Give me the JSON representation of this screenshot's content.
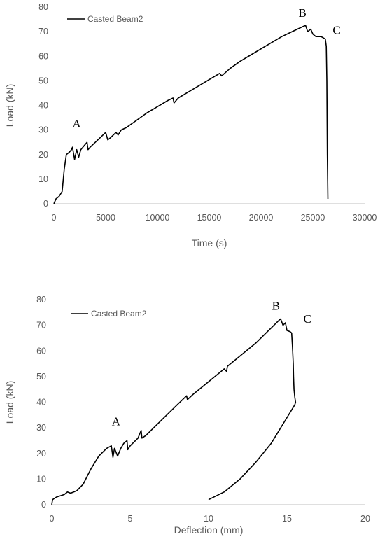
{
  "chart_data": [
    {
      "type": "line",
      "title": "",
      "xlabel": "Time (s)",
      "ylabel": "Load (kN)",
      "xlim": [
        0,
        30000
      ],
      "ylim": [
        0,
        80
      ],
      "xticks": [
        "0",
        "5000",
        "10000",
        "15000",
        "20000",
        "25000",
        "30000"
      ],
      "yticks": [
        "0",
        "10",
        "20",
        "30",
        "40",
        "50",
        "60",
        "70",
        "80"
      ],
      "grid": false,
      "legend_position": "top-left",
      "series": [
        {
          "name": "Casted Beam2",
          "color": "#000000",
          "x": [
            0,
            200,
            500,
            800,
            1000,
            1200,
            1500,
            1700,
            1800,
            2000,
            2200,
            2400,
            2600,
            2800,
            3000,
            3200,
            3300,
            3500,
            4000,
            4500,
            5000,
            5200,
            5500,
            6000,
            6200,
            6500,
            7000,
            8000,
            9000,
            10000,
            11000,
            11500,
            11600,
            12000,
            13000,
            14000,
            15000,
            16000,
            16200,
            17000,
            18000,
            19000,
            20000,
            21000,
            21600,
            22000,
            23000,
            24000,
            24300,
            24500,
            24800,
            25000,
            25300,
            25800,
            26200,
            26300,
            26350,
            26400,
            26450
          ],
          "y": [
            0,
            2,
            3,
            5,
            14,
            20,
            21,
            22,
            23,
            18,
            22,
            19,
            22,
            23,
            24,
            25,
            22,
            23,
            25,
            27,
            29,
            26,
            27,
            29,
            28,
            30,
            31,
            34,
            37,
            39.5,
            42,
            43,
            41,
            43,
            45.5,
            48,
            50.5,
            53,
            52,
            55,
            58,
            60.5,
            63,
            65.5,
            67,
            68,
            70,
            72,
            72.5,
            70,
            71,
            69,
            68,
            68,
            67,
            64,
            50,
            20,
            2
          ]
        }
      ],
      "annotations": [
        {
          "text": "A",
          "x": 2200,
          "y": 31
        },
        {
          "text": "B",
          "x": 24000,
          "y": 76
        },
        {
          "text": "C",
          "x": 27300,
          "y": 69
        }
      ]
    },
    {
      "type": "line",
      "title": "",
      "xlabel": "Deflection (mm)",
      "ylabel": "Load (kN)",
      "xlim": [
        0,
        20
      ],
      "ylim": [
        0,
        80
      ],
      "xticks": [
        "0",
        "5",
        "10",
        "15",
        "20"
      ],
      "yticks": [
        "0",
        "10",
        "20",
        "30",
        "40",
        "50",
        "60",
        "70",
        "80"
      ],
      "grid": false,
      "legend_position": "top-left",
      "series": [
        {
          "name": "Casted Beam2",
          "color": "#000000",
          "x": [
            0,
            0.05,
            0.3,
            0.8,
            1.0,
            1.2,
            1.4,
            1.6,
            2.0,
            2.5,
            3.0,
            3.5,
            3.8,
            3.9,
            4.0,
            4.2,
            4.4,
            4.6,
            4.8,
            4.85,
            5.0,
            5.5,
            5.7,
            5.75,
            6.0,
            7.0,
            8.0,
            8.6,
            8.65,
            9.0,
            10.0,
            11.0,
            11.15,
            11.2,
            12.0,
            13.0,
            13.5,
            14.0,
            14.5,
            14.6,
            14.75,
            14.9,
            15.0,
            15.2,
            15.3,
            15.35,
            15.4,
            15.42,
            15.45,
            15.5,
            15.55,
            15.5,
            15.0,
            14.0,
            13.0,
            12.0,
            11.0,
            10.0
          ],
          "y": [
            0,
            2,
            3,
            4,
            5,
            4.5,
            5,
            5.5,
            8,
            14,
            19,
            22,
            23,
            18.5,
            22,
            19,
            22,
            24,
            25,
            21.5,
            23,
            26,
            29,
            26,
            27,
            33,
            39,
            42.5,
            41,
            43,
            48,
            53,
            52,
            54,
            58,
            63,
            66,
            69,
            72,
            72.5,
            70,
            71,
            68,
            67.5,
            67,
            62,
            55,
            50,
            45,
            42,
            40,
            39,
            34,
            24,
            16.5,
            10,
            5,
            2
          ]
        }
      ],
      "annotations": [
        {
          "text": "A",
          "x": 4.1,
          "y": 31
        },
        {
          "text": "B",
          "x": 14.3,
          "y": 76
        },
        {
          "text": "C",
          "x": 16.3,
          "y": 71
        }
      ]
    }
  ]
}
